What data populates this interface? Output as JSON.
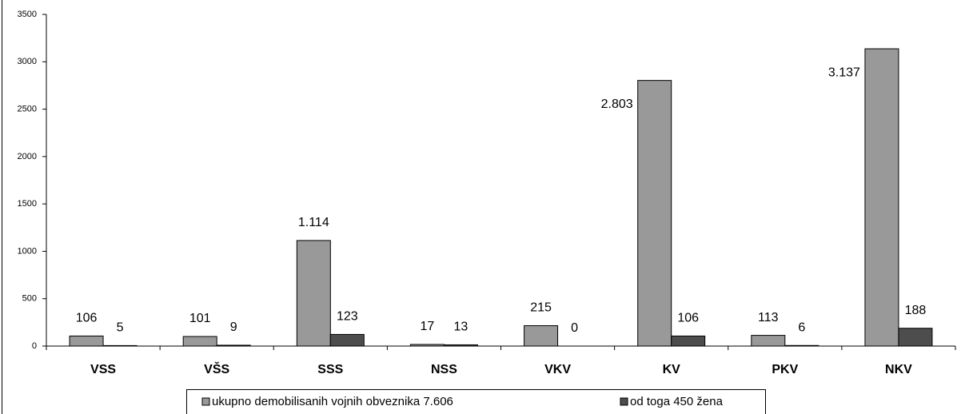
{
  "chart_data": {
    "type": "bar",
    "categories": [
      "VSS",
      "VŠS",
      "SSS",
      "NSS",
      "VKV",
      "KV",
      "PKV",
      "NKV"
    ],
    "series": [
      {
        "name": "ukupno demobilisanih vojnih obveznika 7.606",
        "color": "#999999",
        "values": [
          106,
          101,
          1114,
          17,
          215,
          2803,
          113,
          3137
        ],
        "value_labels": [
          "106",
          "101",
          "1.114",
          "17",
          "215",
          "2.803",
          "113",
          "3.137"
        ]
      },
      {
        "name": "od toga 450 žena",
        "color": "#4d4d4d",
        "values": [
          5,
          9,
          123,
          13,
          0,
          106,
          6,
          188
        ]
      }
    ],
    "ylim": [
      0,
      3500
    ],
    "yticks": [
      0,
      500,
      1000,
      1500,
      2000,
      2500,
      3000,
      3500
    ],
    "grid": false,
    "legend": "bottom"
  }
}
